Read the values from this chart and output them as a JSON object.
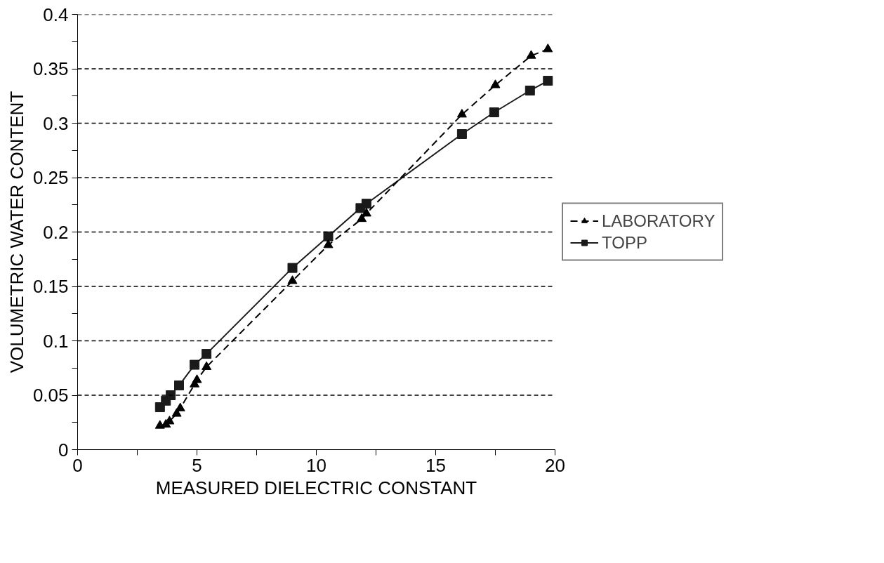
{
  "chart_data": {
    "type": "line",
    "xlabel": "MEASURED DIELECTRIC CONSTANT",
    "ylabel": "VOLUMETRIC WATER CONTENT",
    "xlim": [
      0,
      20
    ],
    "ylim": [
      0,
      0.4
    ],
    "xticks": [
      0,
      {
        "value": 2.5,
        "label": null
      },
      5,
      {
        "value": 7.5,
        "label": null
      },
      10,
      {
        "value": 12.5,
        "label": null
      },
      15,
      {
        "value": 17.5,
        "label": null
      },
      20
    ],
    "yticks": [
      0,
      {
        "value": 0.025,
        "label": null
      },
      0.05,
      {
        "value": 0.075,
        "label": null
      },
      0.1,
      {
        "value": 0.125,
        "label": null
      },
      0.15,
      {
        "value": 0.175,
        "label": null
      },
      0.2,
      {
        "value": 0.225,
        "label": null
      },
      0.25,
      {
        "value": 0.275,
        "label": null
      },
      0.3,
      {
        "value": 0.325,
        "label": null
      },
      0.35,
      {
        "value": 0.375,
        "label": null
      },
      0.4
    ],
    "grid": "y",
    "legend": "right",
    "series": [
      {
        "name": "LABORATORY",
        "color": "#000000",
        "marker": "triangle",
        "line_style": "dashed",
        "x": [
          3.45,
          3.7,
          3.85,
          4.15,
          4.3,
          4.9,
          5.0,
          5.4,
          9.0,
          10.5,
          11.9,
          12.1,
          16.1,
          17.5,
          19.0,
          19.7
        ],
        "values": [
          0.022,
          0.023,
          0.026,
          0.033,
          0.038,
          0.06,
          0.064,
          0.076,
          0.155,
          0.188,
          0.212,
          0.217,
          0.308,
          0.335,
          0.362,
          0.368
        ]
      },
      {
        "name": "TOPP",
        "color": "#1a1a1a",
        "marker": "square",
        "line_style": "solid",
        "x": [
          3.45,
          3.7,
          3.9,
          4.25,
          4.9,
          5.4,
          9.0,
          10.5,
          11.85,
          12.1,
          16.1,
          17.45,
          18.95,
          19.7
        ],
        "values": [
          0.039,
          0.045,
          0.05,
          0.059,
          0.078,
          0.088,
          0.167,
          0.196,
          0.222,
          0.226,
          0.29,
          0.31,
          0.33,
          0.339
        ]
      }
    ]
  }
}
